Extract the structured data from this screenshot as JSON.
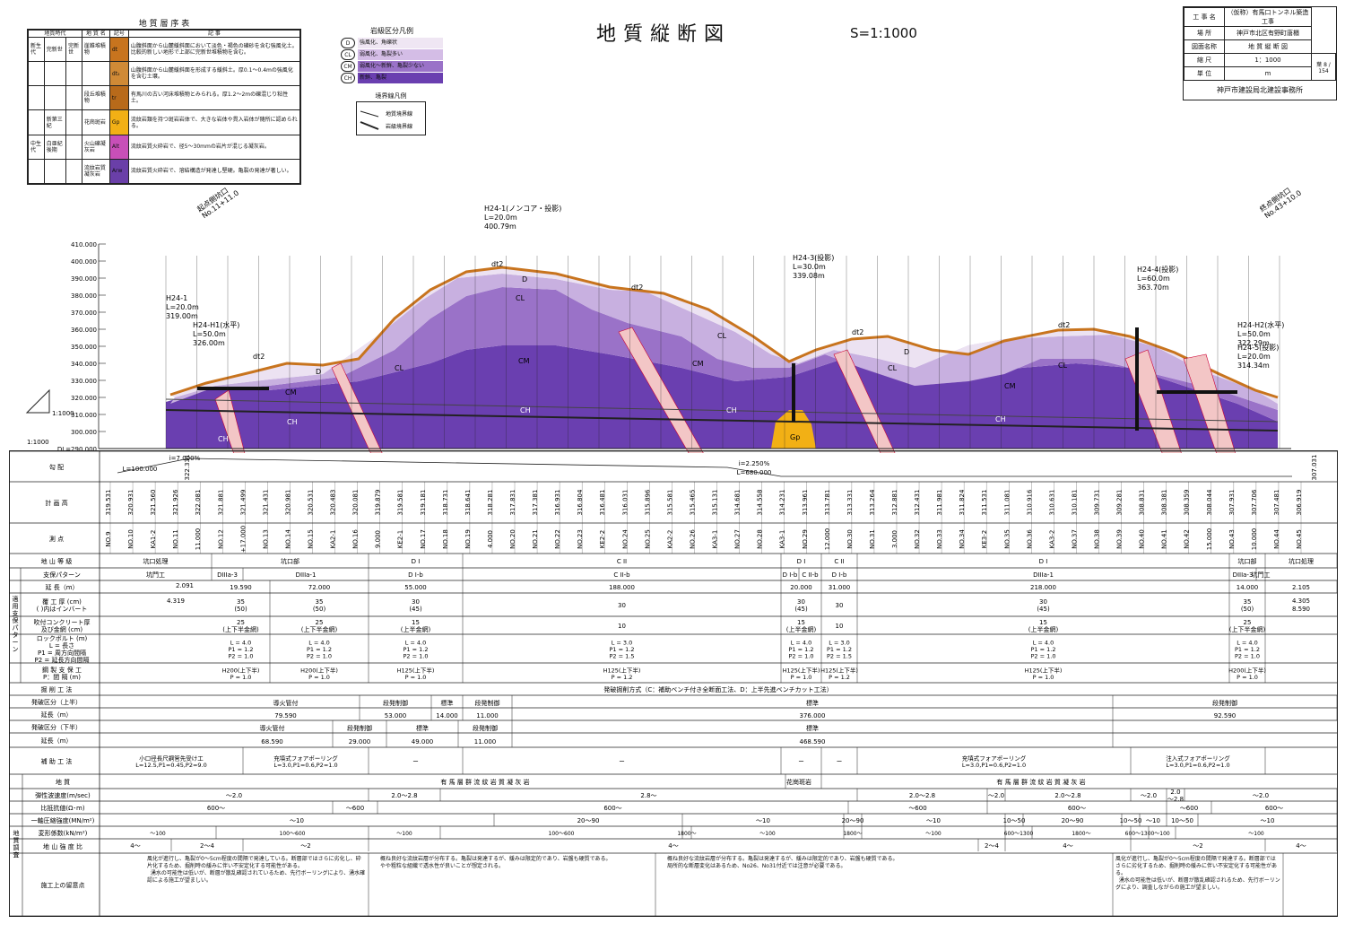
{
  "header": {
    "title": "地質縦断図",
    "scale": "S=1:1000"
  },
  "strat_legend": {
    "title": "地 質 層 序 表",
    "columns": [
      "地質時代",
      "地 質 名",
      "記号",
      "記    事"
    ],
    "rows": [
      {
        "era": "新生代",
        "period": "完新世",
        "group": "完新世",
        "name": "崖錐堆積物",
        "sym": "dt",
        "color": "#c8741e",
        "note": "山腹斜面から山麓緩斜面において淡色・褐色の礫砂を含む強風化土。比較的新しい地形で上部に完新世堆積物を含む。"
      },
      {
        "era": "",
        "period": "",
        "group": "",
        "name": "",
        "sym": "dt₂",
        "color": "#d08a36",
        "note": "山腹斜面から山麓緩斜面を形成する緩斜土。厚0.1〜0.4mの強風化を含む土壌。"
      },
      {
        "era": "",
        "period": "",
        "group": "",
        "name": "段丘堆積物",
        "sym": "tr",
        "color": "#b86a1a",
        "note": "有馬川の古い河床堆積物とみられる。厚1.2〜2mの礫混じり粘性土。"
      },
      {
        "era": "",
        "period": "新第三紀",
        "group": "",
        "name": "花崗斑岩",
        "sym": "Gp",
        "color": "#f2b015",
        "note": "流紋岩類を持つ斑岩岩体で、大きな岩体や貫入岩体が随所に認められる。"
      },
      {
        "era": "中生代",
        "period": "白亜紀後期",
        "group": "",
        "name": "火山礫凝灰岩",
        "sym": "Alt",
        "color": "#c84fb8",
        "note": "流紋岩質火砕岩で、径5〜30mmの岩片が混じる凝灰岩。"
      },
      {
        "era": "",
        "period": "",
        "group": "",
        "name": "流紋岩質凝灰岩",
        "sym": "Arw",
        "color": "#6a3fa8",
        "note": "流紋岩質火砕岩で、溶結構造が発達し堅硬。亀裂の発達が著しい。"
      }
    ]
  },
  "rock_legend": {
    "title": "岩級区分凡例",
    "items": [
      {
        "sym": "D",
        "desc": "強風化、角礫状",
        "color": "#efe6f3"
      },
      {
        "sym": "CL",
        "desc": "弱風化、亀裂多い",
        "color": "#d4bde6"
      },
      {
        "sym": "CM",
        "desc": "弱風化〜新鮮、亀裂少ない",
        "color": "#9a72c8"
      },
      {
        "sym": "CH",
        "desc": "新鮮、亀裂",
        "color": "#6a3fb0"
      }
    ]
  },
  "boundary_legend": {
    "title": "境界線凡例",
    "items": [
      "地質境界線",
      "岩級境界線"
    ]
  },
  "title_block": {
    "rows": [
      {
        "k": "工 事 名",
        "v": "（仮称）有馬口トンネル築造工事"
      },
      {
        "k": "場    所",
        "v": "神戸市北区有野町唐櫃"
      },
      {
        "k": "図面名称",
        "v": "地 質 縦 断 図"
      },
      {
        "k": "縮    尺",
        "v": "1：1000"
      },
      {
        "k": "単    位",
        "v": "m"
      }
    ],
    "sheet_label": "葉",
    "sheet_no": "8",
    "total": "154",
    "office": "神戸市建設局北建設事務所"
  },
  "section": {
    "elevation_ticks": [
      "410.000",
      "400.000",
      "390.000",
      "380.000",
      "370.000",
      "360.000",
      "350.000",
      "340.000",
      "330.000",
      "320.000",
      "310.000",
      "300.000",
      "DL=290.000"
    ],
    "slope_ratio_v": "1:1000",
    "slope_ratio_h": "1:1000",
    "portal_start": "起点側坑口\nNo.11+11.0",
    "portal_end": "終点側坑口\nNo.43+10.0",
    "boreholes": [
      {
        "name": "H24-1",
        "len": "L=20.0m",
        "elev": "319.00m"
      },
      {
        "name": "H24-H1(水平)",
        "len": "L=50.0m",
        "elev": "326.00m"
      },
      {
        "name": "H24-1(ノンコア・投影)",
        "len": "L=20.0m",
        "elev": "400.79m"
      },
      {
        "name": "H24-3(投影)",
        "len": "L=30.0m",
        "elev": "339.08m"
      },
      {
        "name": "H24-4(投影)",
        "len": "L=60.0m",
        "elev": "363.70m"
      },
      {
        "name": "H24-H2(水平)",
        "len": "L=50.0m",
        "elev": "322.29m"
      },
      {
        "name": "H24-5(投影)",
        "len": "L=20.0m",
        "elev": "314.34m"
      }
    ],
    "labels": {
      "dt2": "dt2",
      "D": "D",
      "CL": "CL",
      "CM": "CM",
      "CH": "CH",
      "Gp": "Gp"
    }
  },
  "grade": {
    "label": "勾     配",
    "left_value": "322.331",
    "right_value": "307.031",
    "g1": "i=7.000%",
    "l1": "L=100.000",
    "g2": "i=2.250%",
    "l2": "L=680.000"
  },
  "plan_heights": [
    "319.531",
    "320.931",
    "321.560",
    "321.926",
    "322.081",
    "321.881",
    "321.499",
    "321.431",
    "320.981",
    "320.531",
    "320.483",
    "320.081",
    "319.879",
    "319.581",
    "319.181",
    "318.731",
    "318.641",
    "318.281",
    "317.831",
    "317.381",
    "316.931",
    "316.804",
    "316.481",
    "316.031",
    "315.896",
    "315.581",
    "315.465",
    "315.131",
    "314.681",
    "314.558",
    "314.231",
    "313.961",
    "313.781",
    "313.331",
    "313.264",
    "312.881",
    "312.431",
    "311.981",
    "311.824",
    "311.531",
    "311.081",
    "310.916",
    "310.631",
    "310.181",
    "309.731",
    "309.281",
    "308.831",
    "308.381",
    "308.359",
    "308.044",
    "307.931",
    "307.706",
    "307.481",
    "306.919"
  ],
  "stations": [
    "NO.9",
    "NO.10",
    "KA1-2",
    "NO.11",
    "11.000",
    "NO.12",
    "+17.000",
    "NO.13",
    "NO.14",
    "NO.15",
    "KA2-1",
    "NO.16",
    "9.000",
    "KE2-1",
    "NO.17",
    "NO.18",
    "NO.19",
    "4.000",
    "NO.20",
    "NO.21",
    "NO.22",
    "NO.23",
    "KE2-2",
    "NO.24",
    "NO.25",
    "KA2-2",
    "NO.26",
    "KA3-1",
    "NO.27",
    "NO.28",
    "KA3-1",
    "NO.29",
    "12.000",
    "NO.30",
    "NO.31",
    "3.000",
    "NO.32",
    "NO.33",
    "NO.34",
    "KE3-2",
    "NO.35",
    "NO.36",
    "KA3-2",
    "NO.37",
    "NO.38",
    "NO.39",
    "NO.40",
    "NO.41",
    "NO.42",
    "15.000",
    "NO.43",
    "10.000",
    "NO.44",
    "NO.45"
  ],
  "table_labels": {
    "plan_height": "計   画   高",
    "station": "測        点",
    "ground_class": "地 山 等 級",
    "support_pattern": "支保パターン",
    "length": "延  長（m）",
    "lining": "覆 工 厚   (cm)\n( )内はインバート",
    "shotcrete": "吹付コンクリート厚\n及び金網  (cm)",
    "rockbolt": "ロックボルト (m)\nL = 長さ\nP1 = 周方向間隔\nP2 = 延長方向間隔",
    "steel": "鋼 製 支 保 工\nP：間  隔   (m)",
    "excavation": "掘  削  工  法",
    "blast_upper": "発破区分（上半）",
    "len_upper": "延長（m）",
    "blast_lower": "発破区分（下半）",
    "len_lower": "延長（m）",
    "aux": "補  助  工  法",
    "geo": "地        質",
    "vel": "弾性波速度(m/sec)",
    "res": "比抵抗値(Ω･m)",
    "ucs": "一軸圧縮強度(MN/m²)",
    "mod": "変形係数(kN/m²)",
    "ratio": "地 山 強 度 比",
    "notes": "施工上の留意点",
    "side_support": "適用支保パターン",
    "side_geo": "地質調査"
  },
  "ground_class": [
    "坑口処理",
    "坑口部",
    "D I",
    "C II",
    "D I",
    "C II",
    "D I",
    "坑口部",
    "坑口処理"
  ],
  "support_pattern": [
    "坑門工",
    "DIIIa-3",
    "DIIIa-1",
    "D I-b",
    "C II-b",
    "D I-b",
    "C II-b",
    "D I-b",
    "DIIIa-1",
    "DIIIa-3",
    "坑門工"
  ],
  "lengths": [
    "2.091",
    "4.319",
    "19.590",
    "72.000",
    "55.000",
    "188.000",
    "20.000",
    "31.000",
    "218.000",
    "14.000",
    "2.105",
    "4.305",
    "8.590"
  ],
  "lining": [
    "35\n(50)",
    "35\n(50)",
    "30\n(45)",
    "30",
    "30\n(45)",
    "30",
    "30\n(45)",
    "35\n(50)"
  ],
  "shotcrete": [
    "25\n(上下半金網)",
    "25\n(上下半金網)",
    "15\n(上半金網)",
    "10",
    "15\n(上半金網)",
    "10",
    "15\n(上半金網)",
    "25\n(上下半金網)"
  ],
  "rockbolt": [
    "L = 4.0\nP1 = 1.2\nP2 = 1.0",
    "L = 4.0\nP1 = 1.2\nP2 = 1.0",
    "L = 4.0\nP1 = 1.2\nP2 = 1.0",
    "L = 3.0\nP1 = 1.2\nP2 = 1.5",
    "L = 4.0\nP1 = 1.2\nP2 = 1.0",
    "L = 3.0\nP1 = 1.2\nP2 = 1.5",
    "L = 4.0\nP1 = 1.2\nP2 = 1.0",
    "L = 4.0\nP1 = 1.2\nP2 = 1.0"
  ],
  "steel": [
    "H200(上下半)\nP = 1.0",
    "H200(上下半)\nP = 1.0",
    "H125(上下半)\nP = 1.0",
    "H125(上下半)\nP = 1.2",
    "H125(上下半)\nP = 1.0",
    "H125(上下半)\nP = 1.2",
    "H125(上下半)\nP = 1.0",
    "H200(上下半)\nP = 1.0"
  ],
  "excavation": "発破掘削方式（C：補助ベンチ付き全断面工法、D：上半先進ベンチカット工法）",
  "blast_upper": [
    [
      "導火管付",
      "79.590"
    ],
    [
      "段発制御",
      "53.000"
    ],
    [
      "標準",
      "14.000"
    ],
    [
      "段発制御",
      "11.000"
    ],
    [
      "標準",
      "376.000"
    ],
    [
      "段発制御",
      "92.590"
    ]
  ],
  "blast_lower": [
    [
      "導火管付",
      "68.590"
    ],
    [
      "段発制御",
      "29.000"
    ],
    [
      "標準",
      "49.000"
    ],
    [
      "段発制御",
      "11.000"
    ],
    [
      "標準",
      "468.590"
    ]
  ],
  "aux": [
    "小口径長尺鋼管先受け工\nL=12.5,P1=0.45,P2=9.0",
    "充填式フォアポーリング\nL=3.0,P1=0.6,P2=1.0",
    "ー",
    "ー",
    "ー",
    "ー",
    "充填式フォアポーリング\nL=3.0,P1=0.6,P2=1.0",
    "注入式フォアポーリング\nL=3.0,P1=0.6,P2=1.0"
  ],
  "geology_text": [
    "有 馬 層 群   流 紋 岩 質 凝 灰 岩",
    "花崗斑岩",
    "有 馬 層 群   流 紋 岩 質 凝 灰 岩"
  ],
  "velocity": [
    "〜2.0",
    "2.0〜2.8",
    "2.8〜",
    "2.0〜2.8",
    "〜2.0",
    "2.0〜2.8",
    "〜2.0",
    "2.0\n〜2.8",
    "〜2.0"
  ],
  "resistivity": [
    "600〜",
    "〜600",
    "600〜",
    "〜600",
    "600〜",
    "〜600",
    "600〜"
  ],
  "ucs": [
    "〜10",
    "20〜90",
    "〜10",
    "20〜90",
    "〜10",
    "10〜50",
    "20〜90",
    "10〜50",
    "〜10",
    "10〜50",
    "〜10"
  ],
  "modulus": [
    "〜100",
    "100〜600",
    "〜100",
    "100〜600",
    "1800〜",
    "〜100",
    "1800〜",
    "〜100",
    "600〜1300",
    "1800〜",
    "600〜1300",
    "〜100",
    "〜100"
  ],
  "strength_ratio": [
    "4〜",
    "2〜4",
    "〜2",
    "4〜",
    "2〜4",
    "4〜",
    "〜2",
    "4〜"
  ],
  "notes": [
    "風化が進行し、亀裂が0〜5cm程度の間隔で発達している。断層部ではさらに劣化し、砕片化するため、掘削時の緩みに伴い不安定化する可能性がある。\n  湧水の可能性は低いが、断層が散乱確認されているため、先行ボーリングにより、湧水確認による施工が望ましい。",
    "概ね良好な流紋岩層が分布する。亀裂は発達するが、緩みは限定的であり、岩盤も硬質である。\nやや粗粒な組織で透水性が良いことが想定される。",
    "概ね良好な流紋岩層が分布する。亀裂は発達するが、緩みは限定的であり、岩盤も硬質である。\n局所的な断層変化はあるため、No26、No31付近では注意が必要である。",
    "風化が進行し、亀裂が0〜5cm程度の間隔で発達する。断層部ではさらに劣化するため、掘削時の緩みに伴い不安定化する可能性がある。\n  湧水の可能性は低いが、断層が散乱確認されるため、先行ボーリングにより、調査しながらの施工が望ましい。"
  ]
}
